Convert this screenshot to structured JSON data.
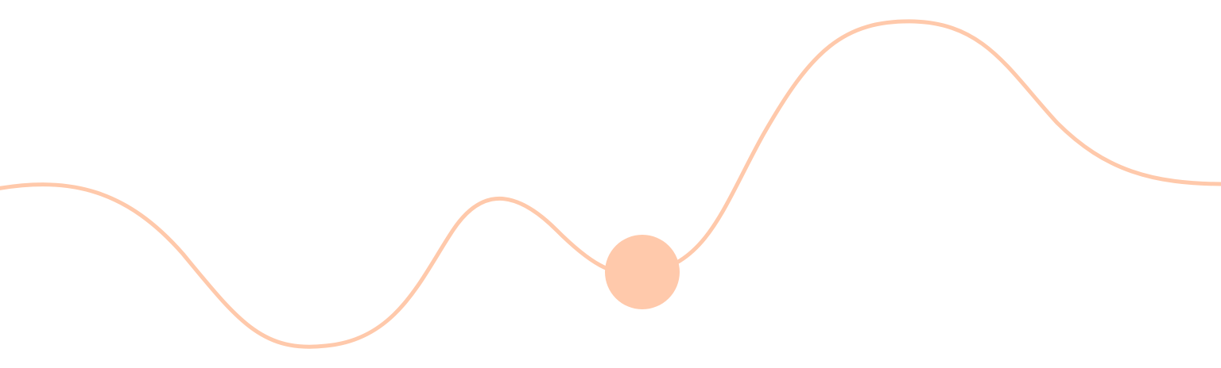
{
  "colors": {
    "background": "#ffffff",
    "accent": "#ffc9ab"
  },
  "decoration": {
    "shape": "wavy-line",
    "marker": "filled-circle"
  }
}
